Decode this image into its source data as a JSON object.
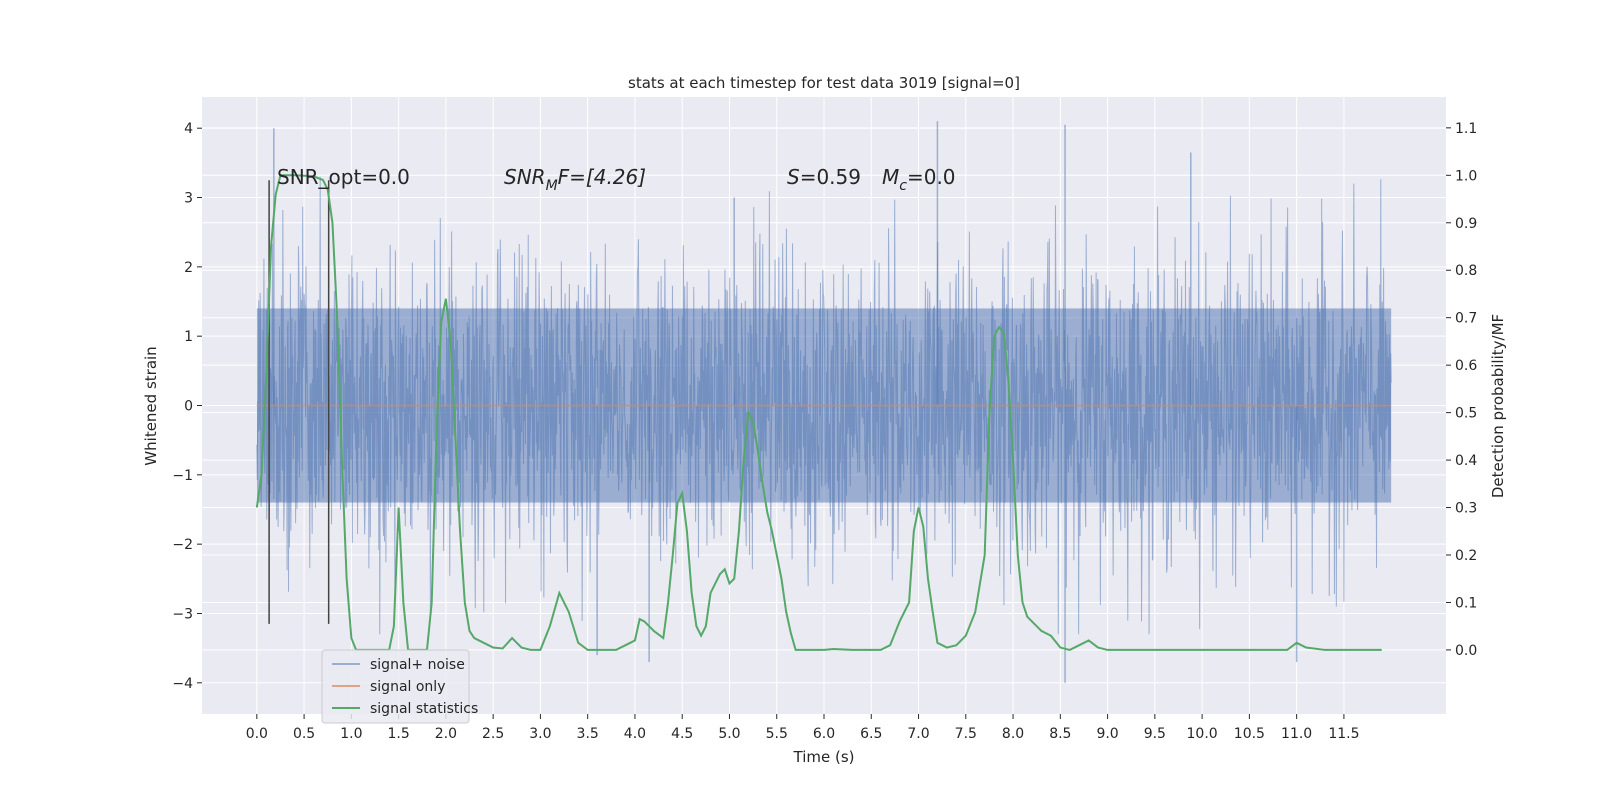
{
  "chart_data": {
    "type": "line",
    "title": "stats at each timestep for test data 3019 [signal=0]",
    "xlabel": "Time (s)",
    "ylabel": "Whitened strain",
    "ylabel_right": "Detection probability/MF",
    "xlim": [
      -0.58,
      12.58
    ],
    "ylim": [
      -4.45,
      4.45
    ],
    "ylim_right": [
      -0.135,
      1.165
    ],
    "x_ticks": [
      "0.0",
      "0.5",
      "1.0",
      "1.5",
      "2.0",
      "2.5",
      "3.0",
      "3.5",
      "4.0",
      "4.5",
      "5.0",
      "5.5",
      "6.0",
      "6.5",
      "7.0",
      "7.5",
      "8.0",
      "8.5",
      "9.0",
      "9.5",
      "10.0",
      "10.5",
      "11.0",
      "11.5"
    ],
    "y_ticks": [
      "4",
      "3",
      "2",
      "1",
      "0",
      "−1",
      "−2",
      "−3",
      "−4"
    ],
    "y_right_ticks": [
      "1.1",
      "1.0",
      "0.9",
      "0.8",
      "0.7",
      "0.6",
      "0.5",
      "0.4",
      "0.3",
      "0.2",
      "0.1",
      "0.0"
    ],
    "grid": true,
    "background": "#eaeaf2",
    "legend_position": "lower-left",
    "annotations": {
      "snr_opt": "SNR_opt=0.0",
      "snr_mf_pre": "SNR",
      "snr_mf_sub": "M",
      "snr_mf_post": "F=[4.26]",
      "s_sym": "S",
      "s_val": "=0.59",
      "mc_sym": "M",
      "mc_sub": "c",
      "mc_val": "=0.0"
    },
    "vertical_markers_s": [
      0.13,
      0.76
    ],
    "series": [
      {
        "name": "signal+ noise",
        "color": "#4c72b0",
        "alpha": 0.5,
        "x_range": [
          0.0,
          12.0
        ],
        "envelope_upper_approx": 2.2,
        "envelope_lower_approx": -2.2,
        "peak_values": [
          [
            0.18,
            4.0
          ],
          [
            5.05,
            3.0
          ],
          [
            7.2,
            4.1
          ],
          [
            8.55,
            4.05
          ],
          [
            9.88,
            3.65
          ],
          [
            8.55,
            -4.0
          ],
          [
            3.6,
            -3.6
          ],
          [
            4.15,
            -3.7
          ],
          [
            11.0,
            -3.7
          ]
        ]
      },
      {
        "name": "signal only",
        "color": "#dd8452",
        "x": [
          0.0,
          12.0
        ],
        "y": [
          0.0,
          0.0
        ]
      },
      {
        "name": "signal statistics",
        "color": "#55a868",
        "axis": "right",
        "x": [
          0.0,
          0.05,
          0.1,
          0.15,
          0.2,
          0.25,
          0.3,
          0.4,
          0.5,
          0.6,
          0.7,
          0.75,
          0.8,
          0.85,
          0.9,
          0.95,
          1.0,
          1.05,
          1.1,
          1.2,
          1.3,
          1.4,
          1.45,
          1.5,
          1.55,
          1.6,
          1.65,
          1.7,
          1.8,
          1.85,
          1.9,
          1.95,
          2.0,
          2.05,
          2.1,
          2.15,
          2.2,
          2.25,
          2.3,
          2.4,
          2.5,
          2.6,
          2.7,
          2.8,
          2.9,
          3.0,
          3.1,
          3.2,
          3.3,
          3.4,
          3.5,
          3.6,
          3.7,
          3.8,
          3.9,
          4.0,
          4.05,
          4.1,
          4.15,
          4.2,
          4.3,
          4.35,
          4.4,
          4.45,
          4.5,
          4.55,
          4.6,
          4.65,
          4.7,
          4.75,
          4.8,
          4.9,
          4.95,
          5.0,
          5.05,
          5.1,
          5.15,
          5.2,
          5.25,
          5.3,
          5.35,
          5.4,
          5.45,
          5.5,
          5.55,
          5.6,
          5.65,
          5.7,
          5.8,
          5.9,
          6.0,
          6.1,
          6.3,
          6.5,
          6.6,
          6.7,
          6.8,
          6.9,
          6.95,
          7.0,
          7.05,
          7.1,
          7.15,
          7.2,
          7.3,
          7.4,
          7.5,
          7.6,
          7.7,
          7.75,
          7.8,
          7.85,
          7.9,
          7.95,
          8.0,
          8.05,
          8.1,
          8.15,
          8.2,
          8.25,
          8.3,
          8.4,
          8.5,
          8.6,
          8.7,
          8.8,
          8.9,
          9.0,
          9.5,
          10.0,
          10.5,
          10.9,
          11.0,
          11.1,
          11.3,
          11.6,
          11.8,
          11.9
        ],
        "y": [
          0.3,
          0.37,
          0.58,
          0.85,
          0.96,
          1.0,
          1.0,
          1.0,
          0.999,
          0.998,
          0.99,
          0.97,
          0.9,
          0.7,
          0.4,
          0.15,
          0.025,
          0.0,
          0.0,
          0.0,
          0.0,
          0.0,
          0.05,
          0.3,
          0.1,
          0.0,
          0.0,
          0.0,
          0.0,
          0.1,
          0.45,
          0.69,
          0.74,
          0.65,
          0.45,
          0.25,
          0.1,
          0.04,
          0.025,
          0.015,
          0.005,
          0.003,
          0.025,
          0.005,
          0.0,
          0.0,
          0.05,
          0.12,
          0.08,
          0.015,
          0.0,
          0.0,
          0.0,
          0.0,
          0.01,
          0.02,
          0.065,
          0.06,
          0.05,
          0.04,
          0.025,
          0.1,
          0.2,
          0.31,
          0.33,
          0.25,
          0.12,
          0.05,
          0.03,
          0.05,
          0.12,
          0.16,
          0.17,
          0.14,
          0.15,
          0.25,
          0.4,
          0.5,
          0.48,
          0.42,
          0.35,
          0.29,
          0.25,
          0.2,
          0.15,
          0.08,
          0.035,
          0.0,
          0.0,
          0.0,
          0.0,
          0.002,
          0.0,
          0.0,
          0.0,
          0.01,
          0.06,
          0.1,
          0.25,
          0.3,
          0.26,
          0.15,
          0.08,
          0.015,
          0.005,
          0.01,
          0.03,
          0.08,
          0.2,
          0.5,
          0.66,
          0.68,
          0.67,
          0.57,
          0.4,
          0.2,
          0.1,
          0.07,
          0.06,
          0.05,
          0.04,
          0.03,
          0.005,
          0.0,
          0.01,
          0.02,
          0.005,
          0.0,
          0.0,
          0.0,
          0.0,
          0.0,
          0.015,
          0.005,
          0.0,
          0.0,
          0.0,
          0.0
        ]
      }
    ]
  }
}
